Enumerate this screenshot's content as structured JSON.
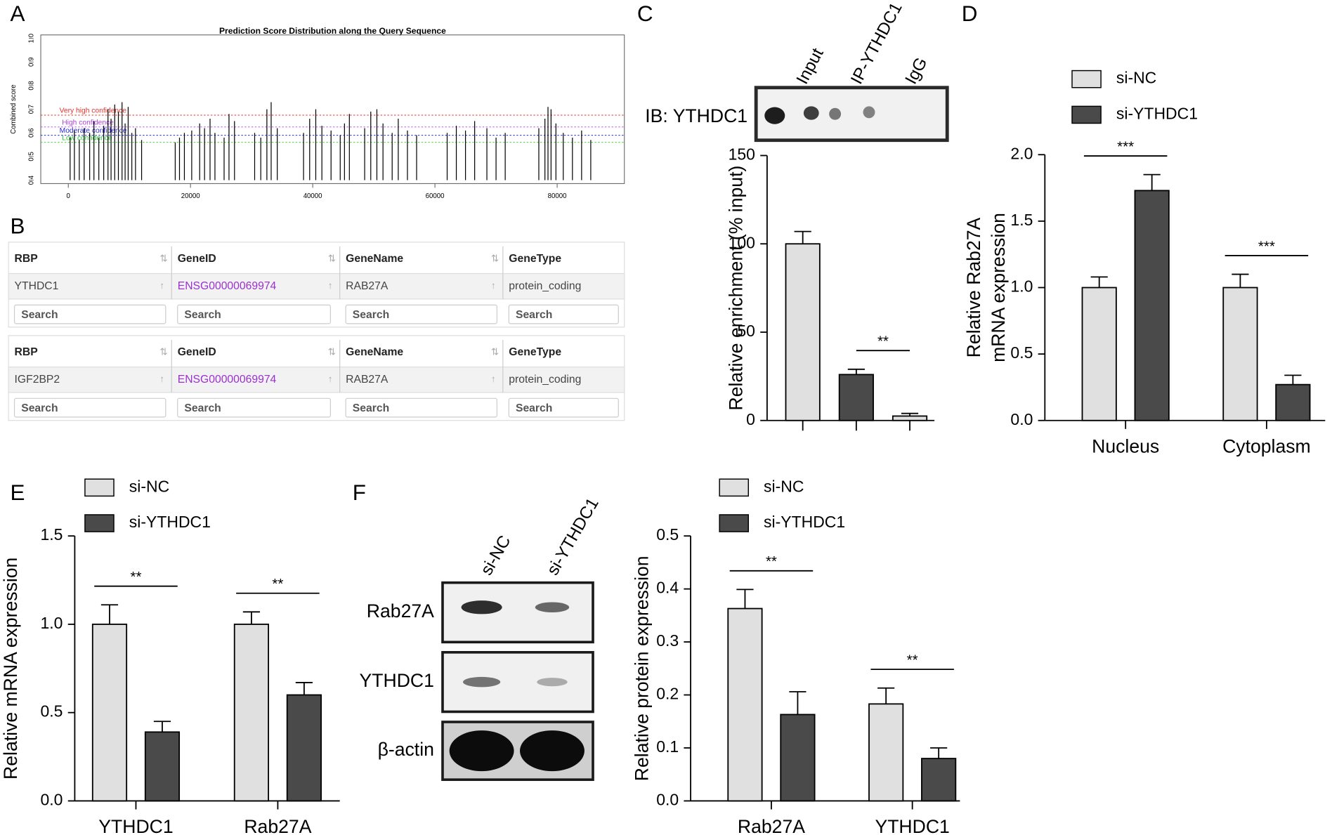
{
  "panel_labels": [
    "A",
    "B",
    "C",
    "D",
    "E",
    "F"
  ],
  "chart_data": [
    {
      "type": "spike",
      "title": "Prediction Score Distribution along the Query Sequence",
      "ylabel": "Combined score",
      "color": "#000000",
      "x": [
        300,
        1000,
        1800,
        2600,
        3500,
        4200,
        5000,
        5800,
        6500,
        7000,
        7600,
        8200,
        8800,
        9300,
        9800,
        10400,
        11000,
        12000,
        17500,
        18200,
        19000,
        20200,
        21500,
        22300,
        23200,
        24000,
        25500,
        26300,
        27200,
        30500,
        31500,
        32500,
        33200,
        34200,
        38500,
        39500,
        40500,
        41500,
        43000,
        44500,
        45200,
        46000,
        48500,
        49500,
        50500,
        51500,
        53000,
        54000,
        55500,
        57000,
        62000,
        63500,
        65000,
        66500,
        68500,
        70000,
        71500,
        77000,
        78000,
        78500,
        79000,
        79800,
        81000,
        82500,
        84000,
        85500
      ],
      "values": [
        0.58,
        0.61,
        0.57,
        0.62,
        0.6,
        0.65,
        0.58,
        0.63,
        0.7,
        0.66,
        0.72,
        0.69,
        0.73,
        0.64,
        0.71,
        0.6,
        0.62,
        0.57,
        0.56,
        0.58,
        0.6,
        0.61,
        0.64,
        0.62,
        0.66,
        0.6,
        0.58,
        0.68,
        0.65,
        0.6,
        0.58,
        0.7,
        0.73,
        0.62,
        0.6,
        0.66,
        0.7,
        0.63,
        0.61,
        0.59,
        0.64,
        0.68,
        0.62,
        0.69,
        0.7,
        0.64,
        0.6,
        0.66,
        0.61,
        0.59,
        0.6,
        0.63,
        0.61,
        0.65,
        0.62,
        0.58,
        0.6,
        0.62,
        0.66,
        0.71,
        0.7,
        0.64,
        0.6,
        0.58,
        0.61,
        0.57
      ],
      "xlim": [
        -4500,
        91000
      ],
      "xticks": [
        0,
        20000,
        40000,
        60000,
        80000
      ],
      "ylim": [
        0.4,
        1.0
      ],
      "yticks": [
        0.4,
        0.5,
        0.6,
        0.7,
        0.8,
        0.9,
        {
          "value": 1.0,
          "label": "1.0"
        }
      ],
      "thresholds": [
        {
          "label": "Very high confidence",
          "value": 0.675,
          "color": "#e8302a"
        },
        {
          "label": "High confidence",
          "value": 0.625,
          "color": "#b040e0"
        },
        {
          "label": "Moderate confidence",
          "value": 0.59,
          "color": "#2a2ad0"
        },
        {
          "label": "Low confidence",
          "value": 0.56,
          "color": "#2ac82a"
        }
      ]
    },
    {
      "type": "bar",
      "ylabel": "Relative enrichment (% input)",
      "categories": [
        "Input",
        "IP-YTHDC1",
        "IgG"
      ],
      "values": [
        100,
        26,
        2.5
      ],
      "errors": [
        7,
        3,
        1.5
      ],
      "colors": [
        "#e0e0e0",
        "#4a4a4a",
        "#e0e0e0"
      ],
      "ylim": [
        0,
        150
      ],
      "yticks": [
        0,
        50,
        100,
        150
      ],
      "annotations": [
        "**"
      ],
      "blot_label": "IB: YTHDC1"
    },
    {
      "type": "bar",
      "ylabel": [
        "Relative Rab27A",
        "mRNA expression"
      ],
      "categories": [
        "Nucleus",
        "Cytoplasm"
      ],
      "series": [
        {
          "name": "si-NC",
          "color": "#e0e0e0",
          "values": [
            1.0,
            1.0
          ],
          "errors": [
            0.08,
            0.1
          ]
        },
        {
          "name": "si-YTHDC1",
          "color": "#4a4a4a",
          "values": [
            1.73,
            0.27
          ],
          "errors": [
            0.12,
            0.07
          ]
        }
      ],
      "ylim": [
        0,
        2
      ],
      "yticks": [
        {
          "value": 0,
          "label": "0.0"
        },
        0.5,
        {
          "value": 1,
          "label": "1.0"
        },
        1.5,
        {
          "value": 2,
          "label": "2.0"
        }
      ],
      "annotations": [
        "***",
        "***"
      ]
    },
    {
      "type": "bar",
      "ylabel": "Relative mRNA expression",
      "categories": [
        "YTHDC1",
        "Rab27A"
      ],
      "series": [
        {
          "name": "si-NC",
          "color": "#e0e0e0",
          "values": [
            1.0,
            1.0
          ],
          "errors": [
            0.11,
            0.07
          ]
        },
        {
          "name": "si-YTHDC1",
          "color": "#4a4a4a",
          "values": [
            0.39,
            0.6
          ],
          "errors": [
            0.06,
            0.07
          ]
        }
      ],
      "ylim": [
        0,
        1.5
      ],
      "yticks": [
        {
          "value": 0,
          "label": "0.0"
        },
        0.5,
        {
          "value": 1,
          "label": "1.0"
        },
        1.5
      ],
      "annotations": [
        "**",
        "**"
      ]
    },
    {
      "type": "bar",
      "ylabel": "Relative protein expression",
      "categories": [
        "Rab27A",
        "YTHDC1"
      ],
      "series": [
        {
          "name": "si-NC",
          "color": "#e0e0e0",
          "values": [
            0.363,
            0.183
          ],
          "errors": [
            0.036,
            0.03
          ]
        },
        {
          "name": "si-YTHDC1",
          "color": "#4a4a4a",
          "values": [
            0.163,
            0.08
          ],
          "errors": [
            0.043,
            0.02
          ]
        }
      ],
      "ylim": [
        0,
        0.5
      ],
      "yticks": [
        {
          "value": 0,
          "label": "0.0"
        },
        0.1,
        0.2,
        0.3,
        0.4,
        0.5
      ],
      "annotations": [
        "**",
        "**"
      ]
    }
  ],
  "table": {
    "tables": [
      {
        "header": [
          "RBP",
          "GeneID",
          "GeneName",
          "GeneType"
        ],
        "row": [
          "YTHDC1",
          "ENSG00000069974",
          "RAB27A",
          "protein_coding"
        ]
      },
      {
        "header": [
          "RBP",
          "GeneID",
          "GeneName",
          "GeneType"
        ],
        "row": [
          "IGF2BP2",
          "ENSG00000069974",
          "RAB27A",
          "protein_coding"
        ]
      }
    ],
    "search": "Search"
  },
  "blot_f": {
    "lanes": [
      "si-NC",
      "si-YTHDC1"
    ],
    "rows": [
      "Rab27A",
      "YTHDC1",
      "β-actin"
    ]
  }
}
